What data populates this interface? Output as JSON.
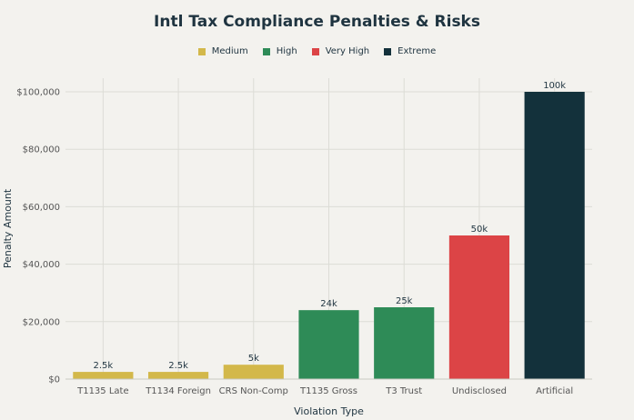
{
  "chart_data": {
    "type": "bar",
    "title": "Intl Tax Compliance Penalties & Risks",
    "xlabel": "Violation Type",
    "ylabel": "Penalty Amount",
    "ylim": [
      0,
      100000
    ],
    "yticks": [
      "$0",
      "$20,000",
      "$40,000",
      "$60,000",
      "$80,000",
      "$100,000"
    ],
    "grid": true,
    "legend_position": "top-center",
    "legend": [
      {
        "name": "Medium",
        "color": "#d3b84a"
      },
      {
        "name": "High",
        "color": "#2e8b57"
      },
      {
        "name": "Very High",
        "color": "#dc4446"
      },
      {
        "name": "Extreme",
        "color": "#13313b"
      }
    ],
    "categories": [
      "T1135 Late",
      "T1134 Foreign",
      "CRS Non-Comp",
      "T1135 Gross",
      "T3 Trust",
      "Undisclosed",
      "Artificial"
    ],
    "values": [
      2500,
      2500,
      5000,
      24000,
      25000,
      50000,
      100000
    ],
    "data_labels": [
      "2.5k",
      "2.5k",
      "5k",
      "24k",
      "25k",
      "50k",
      "100k"
    ],
    "risk": [
      "Medium",
      "Medium",
      "Medium",
      "High",
      "High",
      "Very High",
      "Extreme"
    ]
  }
}
